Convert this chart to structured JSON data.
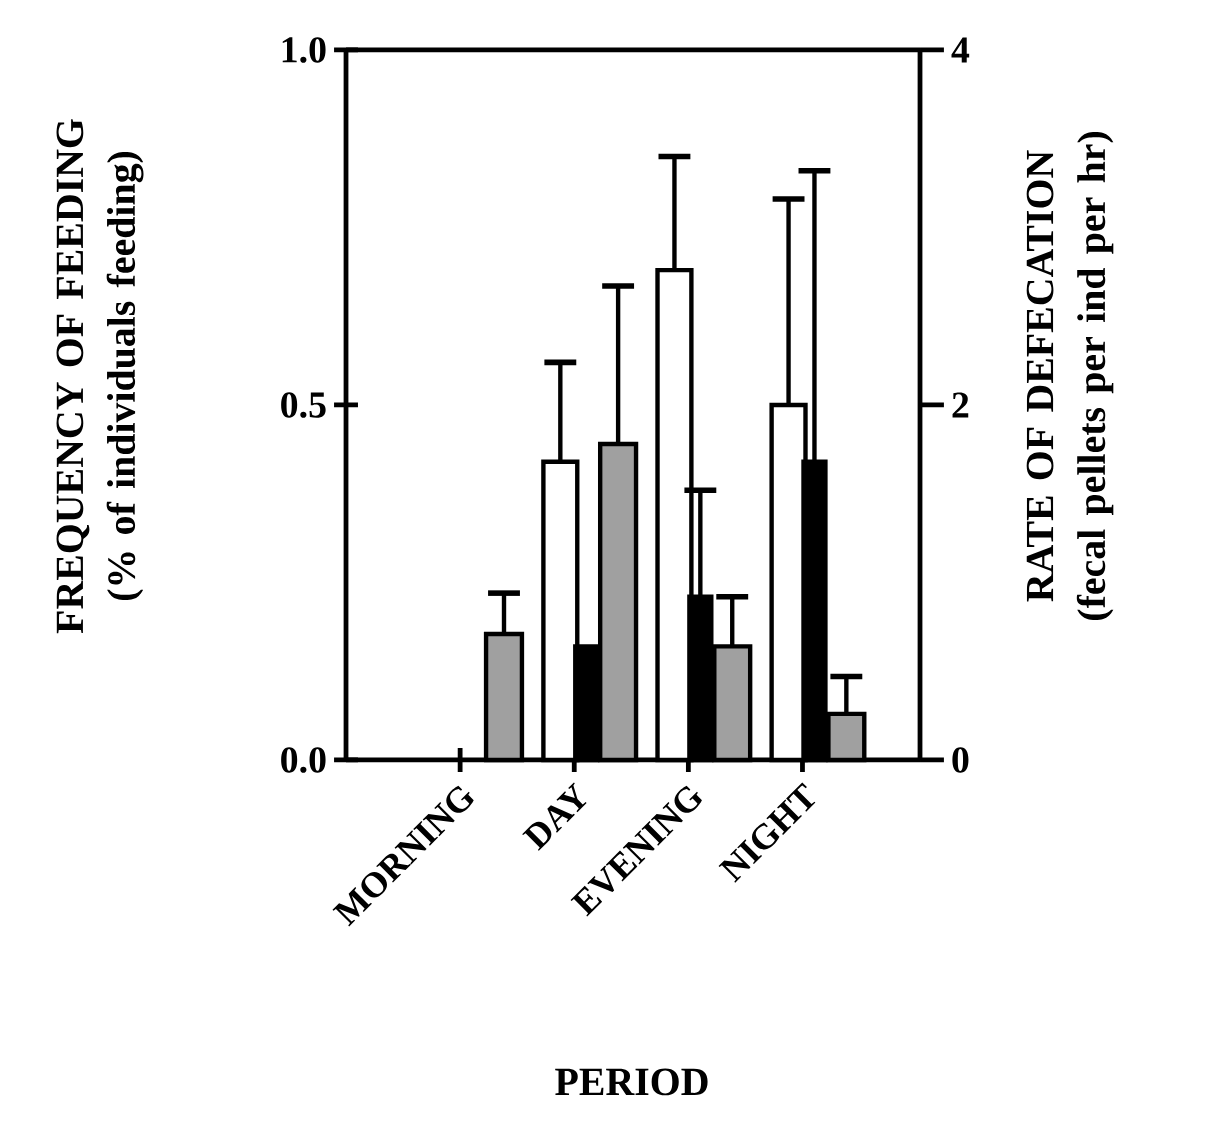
{
  "chart_data": {
    "type": "bar",
    "xlabel": "PERIOD",
    "ylabel": "FREQUENCY OF FEEDING (% of individuals feeding)",
    "y2label": "RATE OF DEFECATION (fecal pellets per ind per hr)",
    "categories": [
      "MORNING",
      "DAY",
      "EVENING",
      "NIGHT"
    ],
    "ylim": [
      0,
      1
    ],
    "yticks": [
      {
        "value": 0,
        "label": "0.0"
      },
      {
        "value": 0.5,
        "label": "0.5"
      },
      {
        "value": 1,
        "label": "1.0"
      }
    ],
    "y2lim": [
      0,
      4
    ],
    "y2ticks": [
      0,
      2,
      4
    ],
    "series": [
      {
        "color": "#ffffff",
        "values": [
          null,
          0.42,
          0.69,
          0.5
        ],
        "errors": [
          null,
          [
            0.42,
            0.56
          ],
          [
            0.69,
            0.85
          ],
          [
            0.5,
            0.79
          ]
        ]
      },
      {
        "color": "#000000",
        "values": [
          null,
          0.16,
          0.23,
          0.42
        ],
        "errors": [
          null,
          null,
          [
            0.23,
            0.38
          ],
          [
            0.42,
            0.83
          ]
        ]
      },
      {
        "color": "#a0a0a0",
        "axis": "y2",
        "values": [
          0.71,
          1.78,
          0.64,
          0.26
        ],
        "errors": [
          [
            0.71,
            0.94
          ],
          [
            1.78,
            2.67
          ],
          [
            0.64,
            0.92
          ],
          [
            0.26,
            0.47
          ]
        ]
      }
    ]
  }
}
